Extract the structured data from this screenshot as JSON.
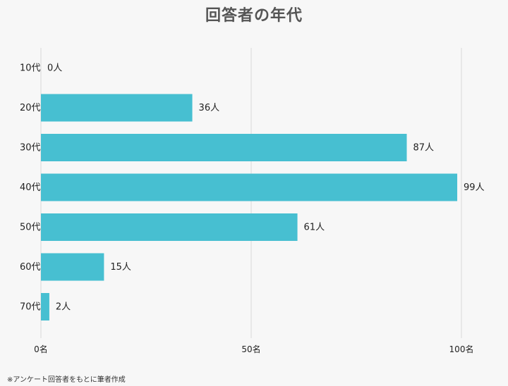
{
  "page": {
    "title": "回答者の年代",
    "footnote": "※アンケート回答者をもとに筆者作成"
  },
  "chart_data": {
    "type": "bar",
    "orientation": "horizontal",
    "title": "回答者の年代",
    "categories": [
      "10代",
      "20代",
      "30代",
      "40代",
      "50代",
      "60代",
      "70代"
    ],
    "values": [
      0,
      36,
      87,
      99,
      61,
      15,
      2
    ],
    "data_labels": [
      "0人",
      "36人",
      "87人",
      "99人",
      "61人",
      "15人",
      "2人"
    ],
    "x_ticks": [
      0,
      50,
      100
    ],
    "x_tick_labels": [
      "0名",
      "50名",
      "100名"
    ],
    "xlim": [
      0,
      100
    ],
    "grid": true,
    "bar_color": "#47bfd1",
    "grid_color": "#d9d9d9"
  }
}
